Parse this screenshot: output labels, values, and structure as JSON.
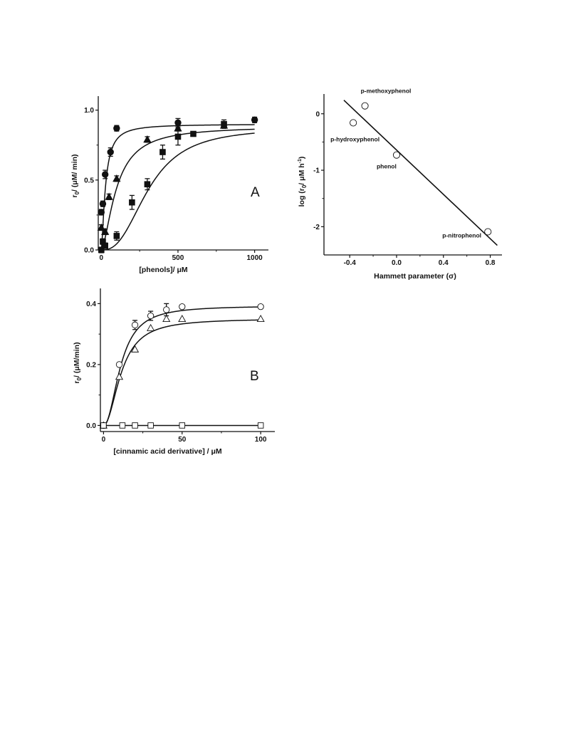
{
  "chart_data": [
    {
      "id": "A",
      "type": "scatter",
      "panel_label": "A",
      "xlabel": "[phenols]/ μM",
      "ylabel_main": "r",
      "ylabel_sub": "0",
      "ylabel_rest": "/ (μM/ min)",
      "xlim": [
        -20,
        1090
      ],
      "ylim": [
        0,
        1.1
      ],
      "xticks": [
        0,
        500,
        1000
      ],
      "xtick_labels": [
        "0",
        "500",
        "1000"
      ],
      "yticks": [
        0,
        0.5,
        1.0
      ],
      "ytick_labels": [
        "0.0",
        "0.5",
        "1.0"
      ],
      "series": [
        {
          "marker": "circle-filled",
          "x": [
            0,
            10,
            25,
            60,
            100,
            500,
            1000
          ],
          "y": [
            0.27,
            0.33,
            0.54,
            0.7,
            0.87,
            0.91,
            0.93
          ],
          "err": [
            0.02,
            0.02,
            0.03,
            0.03,
            0.02,
            0.03,
            0.02
          ],
          "fit": {
            "model": "hill",
            "vmax": 0.9,
            "k": 27,
            "n": 1.5
          }
        },
        {
          "marker": "triangle-filled",
          "x": [
            0,
            25,
            50,
            100,
            300,
            500,
            800
          ],
          "y": [
            0.16,
            0.13,
            0.38,
            0.51,
            0.79,
            0.87,
            0.89
          ],
          "err": [
            0.02,
            0.02,
            0.02,
            0.02,
            0.02,
            0.02,
            0.02
          ],
          "fit": {
            "model": "hill",
            "vmax": 0.885,
            "k": 100,
            "n": 1.6
          }
        },
        {
          "marker": "square-filled",
          "x": [
            0,
            10,
            25,
            100,
            200,
            300,
            400,
            500,
            600,
            800
          ],
          "y": [
            0.0,
            0.06,
            0.03,
            0.1,
            0.34,
            0.47,
            0.7,
            0.81,
            0.83,
            0.9
          ],
          "err": [
            0.02,
            0.02,
            0.02,
            0.03,
            0.05,
            0.04,
            0.05,
            0.06,
            0.0,
            0.03
          ],
          "fit": {
            "model": "hill",
            "vmax": 0.875,
            "k": 310,
            "n": 2.6
          }
        }
      ]
    },
    {
      "id": "B",
      "type": "scatter",
      "panel_label": "B",
      "xlabel": "[cinnamic acid derivative] / μM",
      "ylabel_main": "r",
      "ylabel_sub": "0",
      "ylabel_rest": "/ (μM/min)",
      "xlim": [
        -2,
        109
      ],
      "ylim": [
        -0.02,
        0.45
      ],
      "xticks": [
        0,
        50,
        100
      ],
      "xtick_labels": [
        "0",
        "50",
        "100"
      ],
      "yticks": [
        0,
        0.2,
        0.4
      ],
      "ytick_labels": [
        "0.0",
        "0.2",
        "0.4"
      ],
      "series": [
        {
          "marker": "circle-open",
          "x": [
            0,
            10,
            20,
            30,
            40,
            50,
            100
          ],
          "y": [
            0.0,
            0.2,
            0.33,
            0.36,
            0.38,
            0.39,
            0.39
          ],
          "err": [
            0.0,
            0.005,
            0.015,
            0.015,
            0.02,
            0.005,
            0.005
          ],
          "fit": {
            "model": "hill",
            "vmax": 0.393,
            "k": 11,
            "n": 2.1
          }
        },
        {
          "marker": "triangle-open",
          "x": [
            0,
            10,
            20,
            30,
            40,
            50,
            100
          ],
          "y": [
            0.0,
            0.16,
            0.25,
            0.32,
            0.35,
            0.35,
            0.35
          ],
          "err": [
            0.0,
            0.0,
            0.0,
            0.0,
            0.0,
            0.0,
            0.0
          ],
          "fit": {
            "model": "hill",
            "vmax": 0.351,
            "k": 11.5,
            "n": 2.0
          }
        },
        {
          "marker": "square-open",
          "x": [
            0,
            12,
            20,
            30,
            50,
            100
          ],
          "y": [
            0.0,
            0.0,
            0.0,
            0.0,
            0.0,
            0.0
          ],
          "err": [
            0,
            0,
            0,
            0,
            0,
            0
          ],
          "fit": {
            "model": "flat",
            "value": 0.0
          }
        }
      ]
    },
    {
      "id": "C",
      "type": "scatter",
      "xlabel": "Hammett parameter (σ)",
      "ylabel_main": "log (r",
      "ylabel_sub": "0",
      "ylabel_rest": "/ μM h",
      "ylabel_sup": "-1",
      "ylabel_close": ")",
      "xlim": [
        -0.62,
        0.9
      ],
      "ylim": [
        -2.5,
        0.35
      ],
      "xticks": [
        -0.4,
        0.0,
        0.4,
        0.8
      ],
      "xtick_labels": [
        "-0.4",
        "0.0",
        "0.4",
        "0.8"
      ],
      "yticks": [
        -2,
        -1,
        0
      ],
      "ytick_labels": [
        "-2",
        "-1",
        "0"
      ],
      "points": [
        {
          "name": "p-methoxyphenol",
          "x": -0.27,
          "y": 0.14
        },
        {
          "name": "p-hydroxyphenol",
          "x": -0.37,
          "y": -0.16
        },
        {
          "name": "phenol",
          "x": 0.0,
          "y": -0.73
        },
        {
          "name": "p-nitrophenol",
          "x": 0.78,
          "y": -2.09
        }
      ],
      "fit_line": {
        "x": [
          -0.45,
          0.86
        ],
        "y": [
          0.24,
          -2.33
        ]
      }
    }
  ]
}
